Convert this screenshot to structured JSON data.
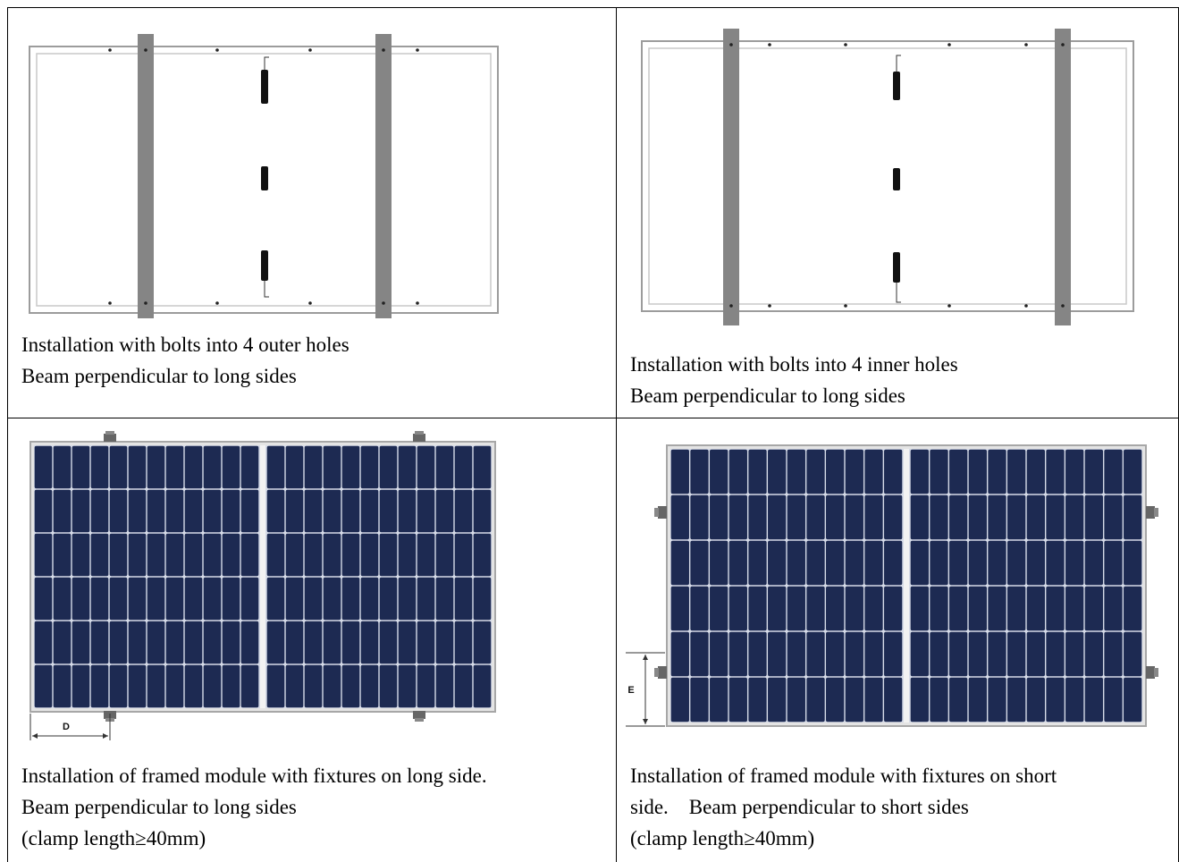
{
  "cells": [
    {
      "id": "top-left",
      "lines": [
        "Installation with bolts into 4 outer holes",
        "Beam perpendicular to long sides"
      ]
    },
    {
      "id": "top-right",
      "lines": [
        "Installation with bolts into 4 inner holes",
        "Beam perpendicular to long sides"
      ]
    },
    {
      "id": "bottom-left",
      "dimension_label": "D",
      "lines": [
        "Installation of framed module with fixtures on long side.",
        "Beam perpendicular to long sides",
        "(clamp length≥40mm)"
      ]
    },
    {
      "id": "bottom-right",
      "dimension_label": "E",
      "lines": [
        "Installation of framed module with fixtures on short",
        "side.    Beam perpendicular to short sides",
        "(clamp length≥40mm)"
      ]
    }
  ],
  "colors": {
    "panel_navy": "#1d2a52",
    "cell_grid": "#d6dbe8",
    "frame_gray": "#a7a7a7",
    "beam_gray": "#8a8a8a"
  }
}
